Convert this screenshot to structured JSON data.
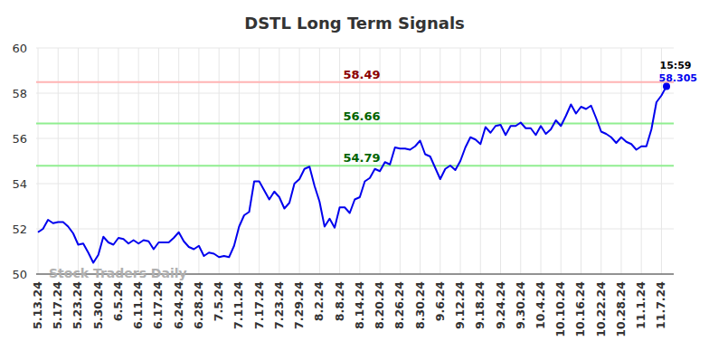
{
  "chart_data": {
    "type": "line",
    "title": "DSTL Long Term Signals",
    "watermark": "Stock Traders Daily",
    "last_point_time": "15:59",
    "color": "#0000ee",
    "grid": true,
    "ylim": [
      50,
      60
    ],
    "yticks": [
      50,
      52,
      54,
      56,
      58,
      60
    ],
    "reference_lines": [
      {
        "value": 58.49,
        "color": "#ffb3b3",
        "label_color": "#8b0000"
      },
      {
        "value": 56.66,
        "color": "#90ee90",
        "label_color": "#006400"
      },
      {
        "value": 54.79,
        "color": "#90ee90",
        "label_color": "#006400"
      }
    ],
    "categories": [
      "5.13.24",
      null,
      null,
      null,
      "5.17.24",
      null,
      null,
      null,
      "5.23.24",
      null,
      null,
      null,
      "5.30.24",
      null,
      null,
      null,
      "6.5.24",
      null,
      null,
      null,
      "6.11.24",
      null,
      null,
      null,
      "6.17.24",
      null,
      null,
      null,
      "6.24.24",
      null,
      null,
      null,
      "6.28.24",
      null,
      null,
      null,
      "7.5.24",
      null,
      null,
      null,
      "7.11.24",
      null,
      null,
      null,
      "7.17.24",
      null,
      null,
      null,
      "7.23.24",
      null,
      null,
      null,
      "7.29.24",
      null,
      null,
      null,
      "8.2.24",
      null,
      null,
      null,
      "8.8.24",
      null,
      null,
      null,
      "8.14.24",
      null,
      null,
      null,
      "8.20.24",
      null,
      null,
      null,
      "8.26.24",
      null,
      null,
      null,
      "8.30.24",
      null,
      null,
      null,
      "9.6.24",
      null,
      null,
      null,
      "9.12.24",
      null,
      null,
      null,
      "9.18.24",
      null,
      null,
      null,
      "9.24.24",
      null,
      null,
      null,
      "9.30.24",
      null,
      null,
      null,
      "10.4.24",
      null,
      null,
      null,
      "10.10.24",
      null,
      null,
      null,
      "10.16.24",
      null,
      null,
      null,
      "10.22.24",
      null,
      null,
      null,
      "10.28.24",
      null,
      null,
      null,
      "11.1.24",
      null,
      null,
      null,
      "11.7.24",
      null
    ],
    "values": [
      51.85,
      52.0,
      52.4,
      52.25,
      52.3,
      52.3,
      52.1,
      51.8,
      51.3,
      51.35,
      50.95,
      50.5,
      50.85,
      51.65,
      51.4,
      51.3,
      51.6,
      51.55,
      51.35,
      51.5,
      51.35,
      51.5,
      51.45,
      51.1,
      51.4,
      51.4,
      51.4,
      51.6,
      51.85,
      51.45,
      51.2,
      51.1,
      51.25,
      50.8,
      50.95,
      50.9,
      50.75,
      50.8,
      50.75,
      51.25,
      52.1,
      52.6,
      52.75,
      54.1,
      54.1,
      53.7,
      53.3,
      53.65,
      53.4,
      52.9,
      53.15,
      54.0,
      54.2,
      54.65,
      54.75,
      53.9,
      53.2,
      52.1,
      52.45,
      52.05,
      52.95,
      52.95,
      52.7,
      53.3,
      53.4,
      54.1,
      54.25,
      54.65,
      54.55,
      54.95,
      54.85,
      55.6,
      55.55,
      55.55,
      55.5,
      55.65,
      55.9,
      55.3,
      55.2,
      54.7,
      54.2,
      54.65,
      54.8,
      54.6,
      55.0,
      55.6,
      56.05,
      55.95,
      55.75,
      56.5,
      56.25,
      56.55,
      56.6,
      56.15,
      56.55,
      56.55,
      56.7,
      56.45,
      56.45,
      56.15,
      56.55,
      56.2,
      56.4,
      56.8,
      56.55,
      57.0,
      57.5,
      57.1,
      57.4,
      57.3,
      57.45,
      56.9,
      56.3,
      56.2,
      56.05,
      55.8,
      56.05,
      55.85,
      55.75,
      55.5,
      55.65,
      55.65,
      56.4,
      57.6,
      57.9,
      58.305
    ]
  }
}
